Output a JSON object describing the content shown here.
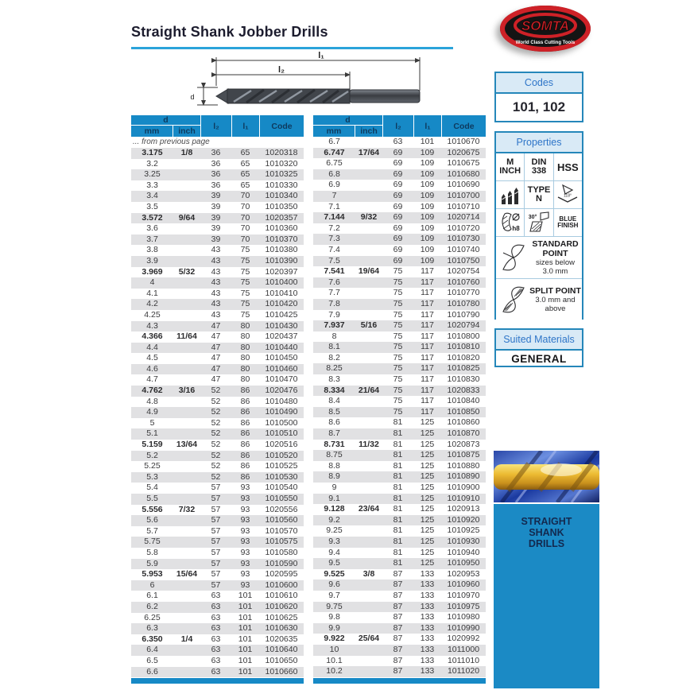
{
  "page": {
    "title": "Straight Shank Jobber Drills"
  },
  "diagram": {
    "l1_label": "l₁",
    "l2_label": "l₂",
    "d_label": "d"
  },
  "table": {
    "headers": {
      "d": "d",
      "mm": "mm",
      "inch": "inch",
      "l2": "l₂",
      "l1": "l₁",
      "code": "Code"
    },
    "note": "... from previous page",
    "left_rows": [
      [
        "3.175",
        "1/8",
        "36",
        "65",
        "1020318"
      ],
      [
        "3.2",
        "",
        "36",
        "65",
        "1010320"
      ],
      [
        "3.25",
        "",
        "36",
        "65",
        "1010325"
      ],
      [
        "3.3",
        "",
        "36",
        "65",
        "1010330"
      ],
      [
        "3.4",
        "",
        "39",
        "70",
        "1010340"
      ],
      [
        "3.5",
        "",
        "39",
        "70",
        "1010350"
      ],
      [
        "3.572",
        "9/64",
        "39",
        "70",
        "1020357"
      ],
      [
        "3.6",
        "",
        "39",
        "70",
        "1010360"
      ],
      [
        "3.7",
        "",
        "39",
        "70",
        "1010370"
      ],
      [
        "3.8",
        "",
        "43",
        "75",
        "1010380"
      ],
      [
        "3.9",
        "",
        "43",
        "75",
        "1010390"
      ],
      [
        "3.969",
        "5/32",
        "43",
        "75",
        "1020397"
      ],
      [
        "4",
        "",
        "43",
        "75",
        "1010400"
      ],
      [
        "4.1",
        "",
        "43",
        "75",
        "1010410"
      ],
      [
        "4.2",
        "",
        "43",
        "75",
        "1010420"
      ],
      [
        "4.25",
        "",
        "43",
        "75",
        "1010425"
      ],
      [
        "4.3",
        "",
        "47",
        "80",
        "1010430"
      ],
      [
        "4.366",
        "11/64",
        "47",
        "80",
        "1020437"
      ],
      [
        "4.4",
        "",
        "47",
        "80",
        "1010440"
      ],
      [
        "4.5",
        "",
        "47",
        "80",
        "1010450"
      ],
      [
        "4.6",
        "",
        "47",
        "80",
        "1010460"
      ],
      [
        "4.7",
        "",
        "47",
        "80",
        "1010470"
      ],
      [
        "4.762",
        "3/16",
        "52",
        "86",
        "1020476"
      ],
      [
        "4.8",
        "",
        "52",
        "86",
        "1010480"
      ],
      [
        "4.9",
        "",
        "52",
        "86",
        "1010490"
      ],
      [
        "5",
        "",
        "52",
        "86",
        "1010500"
      ],
      [
        "5.1",
        "",
        "52",
        "86",
        "1010510"
      ],
      [
        "5.159",
        "13/64",
        "52",
        "86",
        "1020516"
      ],
      [
        "5.2",
        "",
        "52",
        "86",
        "1010520"
      ],
      [
        "5.25",
        "",
        "52",
        "86",
        "1010525"
      ],
      [
        "5.3",
        "",
        "52",
        "86",
        "1010530"
      ],
      [
        "5.4",
        "",
        "57",
        "93",
        "1010540"
      ],
      [
        "5.5",
        "",
        "57",
        "93",
        "1010550"
      ],
      [
        "5.556",
        "7/32",
        "57",
        "93",
        "1020556"
      ],
      [
        "5.6",
        "",
        "57",
        "93",
        "1010560"
      ],
      [
        "5.7",
        "",
        "57",
        "93",
        "1010570"
      ],
      [
        "5.75",
        "",
        "57",
        "93",
        "1010575"
      ],
      [
        "5.8",
        "",
        "57",
        "93",
        "1010580"
      ],
      [
        "5.9",
        "",
        "57",
        "93",
        "1010590"
      ],
      [
        "5.953",
        "15/64",
        "57",
        "93",
        "1020595"
      ],
      [
        "6",
        "",
        "57",
        "93",
        "1010600"
      ],
      [
        "6.1",
        "",
        "63",
        "101",
        "1010610"
      ],
      [
        "6.2",
        "",
        "63",
        "101",
        "1010620"
      ],
      [
        "6.25",
        "",
        "63",
        "101",
        "1010625"
      ],
      [
        "6.3",
        "",
        "63",
        "101",
        "1010630"
      ],
      [
        "6.350",
        "1/4",
        "63",
        "101",
        "1020635"
      ],
      [
        "6.4",
        "",
        "63",
        "101",
        "1010640"
      ],
      [
        "6.5",
        "",
        "63",
        "101",
        "1010650"
      ],
      [
        "6.6",
        "",
        "63",
        "101",
        "1010660"
      ]
    ],
    "right_rows": [
      [
        "6.7",
        "",
        "63",
        "101",
        "1010670"
      ],
      [
        "6.747",
        "17/64",
        "69",
        "109",
        "1020675"
      ],
      [
        "6.75",
        "",
        "69",
        "109",
        "1010675"
      ],
      [
        "6.8",
        "",
        "69",
        "109",
        "1010680"
      ],
      [
        "6.9",
        "",
        "69",
        "109",
        "1010690"
      ],
      [
        "7",
        "",
        "69",
        "109",
        "1010700"
      ],
      [
        "7.1",
        "",
        "69",
        "109",
        "1010710"
      ],
      [
        "7.144",
        "9/32",
        "69",
        "109",
        "1020714"
      ],
      [
        "7.2",
        "",
        "69",
        "109",
        "1010720"
      ],
      [
        "7.3",
        "",
        "69",
        "109",
        "1010730"
      ],
      [
        "7.4",
        "",
        "69",
        "109",
        "1010740"
      ],
      [
        "7.5",
        "",
        "69",
        "109",
        "1010750"
      ],
      [
        "7.541",
        "19/64",
        "75",
        "117",
        "1020754"
      ],
      [
        "7.6",
        "",
        "75",
        "117",
        "1010760"
      ],
      [
        "7.7",
        "",
        "75",
        "117",
        "1010770"
      ],
      [
        "7.8",
        "",
        "75",
        "117",
        "1010780"
      ],
      [
        "7.9",
        "",
        "75",
        "117",
        "1010790"
      ],
      [
        "7.937",
        "5/16",
        "75",
        "117",
        "1020794"
      ],
      [
        "8",
        "",
        "75",
        "117",
        "1010800"
      ],
      [
        "8.1",
        "",
        "75",
        "117",
        "1010810"
      ],
      [
        "8.2",
        "",
        "75",
        "117",
        "1010820"
      ],
      [
        "8.25",
        "",
        "75",
        "117",
        "1010825"
      ],
      [
        "8.3",
        "",
        "75",
        "117",
        "1010830"
      ],
      [
        "8.334",
        "21/64",
        "75",
        "117",
        "1020833"
      ],
      [
        "8.4",
        "",
        "75",
        "117",
        "1010840"
      ],
      [
        "8.5",
        "",
        "75",
        "117",
        "1010850"
      ],
      [
        "8.6",
        "",
        "81",
        "125",
        "1010860"
      ],
      [
        "8.7",
        "",
        "81",
        "125",
        "1010870"
      ],
      [
        "8.731",
        "11/32",
        "81",
        "125",
        "1020873"
      ],
      [
        "8.75",
        "",
        "81",
        "125",
        "1010875"
      ],
      [
        "8.8",
        "",
        "81",
        "125",
        "1010880"
      ],
      [
        "8.9",
        "",
        "81",
        "125",
        "1010890"
      ],
      [
        "9",
        "",
        "81",
        "125",
        "1010900"
      ],
      [
        "9.1",
        "",
        "81",
        "125",
        "1010910"
      ],
      [
        "9.128",
        "23/64",
        "81",
        "125",
        "1020913"
      ],
      [
        "9.2",
        "",
        "81",
        "125",
        "1010920"
      ],
      [
        "9.25",
        "",
        "81",
        "125",
        "1010925"
      ],
      [
        "9.3",
        "",
        "81",
        "125",
        "1010930"
      ],
      [
        "9.4",
        "",
        "81",
        "125",
        "1010940"
      ],
      [
        "9.5",
        "",
        "81",
        "125",
        "1010950"
      ],
      [
        "9.525",
        "3/8",
        "87",
        "133",
        "1020953"
      ],
      [
        "9.6",
        "",
        "87",
        "133",
        "1010960"
      ],
      [
        "9.7",
        "",
        "87",
        "133",
        "1010970"
      ],
      [
        "9.75",
        "",
        "87",
        "133",
        "1010975"
      ],
      [
        "9.8",
        "",
        "87",
        "133",
        "1010980"
      ],
      [
        "9.9",
        "",
        "87",
        "133",
        "1010990"
      ],
      [
        "9.922",
        "25/64",
        "87",
        "133",
        "1020992"
      ],
      [
        "10",
        "",
        "87",
        "133",
        "1011000"
      ],
      [
        "10.1",
        "",
        "87",
        "133",
        "1011010"
      ],
      [
        "10.2",
        "",
        "87",
        "133",
        "1011020"
      ]
    ]
  },
  "sidebar": {
    "logo": {
      "brand": "SOMTA",
      "tagline": "World Class Cutting Tools"
    },
    "codes": {
      "title": "Codes",
      "value": "101, 102"
    },
    "properties": {
      "title": "Properties",
      "m_inch_1": "M",
      "m_inch_2": "INCH",
      "din_1": "DIN",
      "din_2": "338",
      "hss": "HSS",
      "type_1": "TYPE",
      "type_2": "N",
      "point_angle": "118°",
      "tolerance_sym": "Ø",
      "tolerance": "h8",
      "helix": "30°",
      "finish_1": "BLUE",
      "finish_2": "FINISH",
      "standard_point_1": "STANDARD",
      "standard_point_2": "POINT",
      "standard_note_1": "sizes below",
      "standard_note_2": "3.0 mm",
      "split_point": "SPLIT POINT",
      "split_note_1": "3.0 mm and",
      "split_note_2": "above"
    },
    "materials": {
      "title": "Suited Materials",
      "value": "GENERAL"
    },
    "category": {
      "line1": "STRAIGHT",
      "line2": "SHANK",
      "line3": "DRILLS"
    }
  },
  "colors": {
    "table_header_blue": "#1689c6",
    "stripe_gray": "#e1e1e3",
    "title_underline": "#2ba3da",
    "box_border": "#2587ba",
    "box_header_bg": "#d9eaf6",
    "box_header_text": "#2e75c8",
    "category_bg": "#1b8ac5",
    "logo_red": "#ce2127"
  }
}
